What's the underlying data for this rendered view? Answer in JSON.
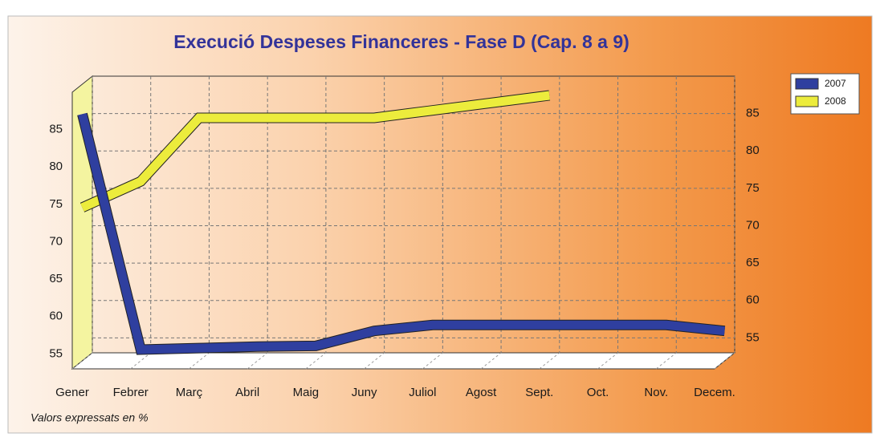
{
  "chart_data": {
    "type": "line",
    "title": "Execució Despeses Financeres - Fase D (Cap. 8 a 9)",
    "note": "Valors expressats en %",
    "categories": [
      "Gener",
      "Febrer",
      "Març",
      "Abril",
      "Maig",
      "Juny",
      "Juliol",
      "Agost",
      "Sept.",
      "Oct.",
      "Nov.",
      "Decem."
    ],
    "series": [
      {
        "name": "2007",
        "color": "#2f3f9f",
        "values": [
          86,
          54.5,
          54.7,
          54.9,
          55,
          57,
          57.8,
          57.8,
          57.8,
          57.8,
          57.8,
          57
        ]
      },
      {
        "name": "2008",
        "color": "#ecec3c",
        "values": [
          73.5,
          77,
          85.5,
          85.5,
          85.5,
          85.5,
          86.5,
          87.5,
          88.5,
          null,
          null,
          null
        ]
      }
    ],
    "ylim": [
      53,
      90
    ],
    "yticks": [
      55,
      60,
      65,
      70,
      75,
      80,
      85
    ],
    "grid": true,
    "legend": "top-right"
  }
}
